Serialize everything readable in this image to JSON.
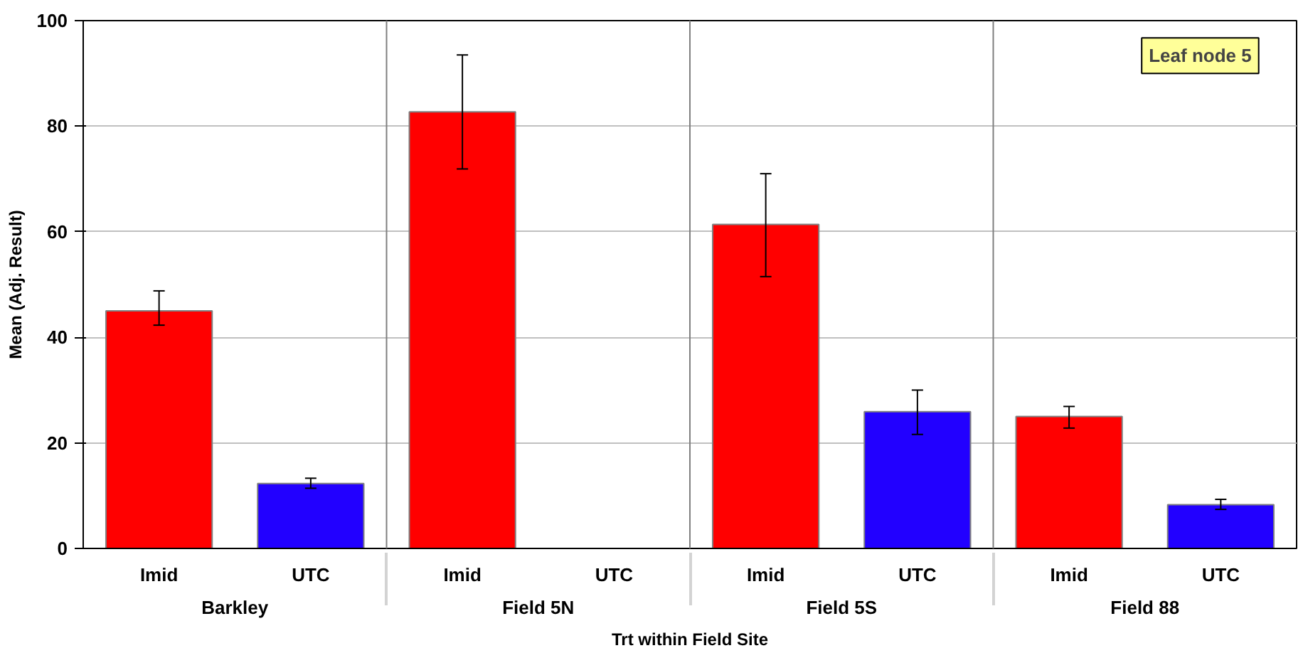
{
  "chart_data": {
    "type": "bar",
    "xlabel": "Trt within Field Site",
    "ylabel": "Mean (Adj. Result)",
    "categories": [
      "Barkley",
      "Field 5N",
      "Field 5S",
      "Field 88"
    ],
    "series": [
      {
        "name": "Imid",
        "color": "#ff0000",
        "values": [
          45,
          82.7,
          61.4,
          25
        ],
        "errors": [
          [
            42.3,
            48.8
          ],
          [
            71.9,
            93.5
          ],
          [
            51.5,
            71
          ],
          [
            22.8,
            26.9
          ]
        ]
      },
      {
        "name": "UTC",
        "color": "#2200ff",
        "values": [
          12.3,
          null,
          25.9,
          8.3
        ],
        "errors": [
          [
            11.4,
            13.3
          ],
          null,
          [
            21.6,
            30
          ],
          [
            7.4,
            9.3
          ]
        ]
      }
    ],
    "ylim": [
      0,
      100
    ],
    "yticks": [
      0,
      20,
      40,
      60,
      80,
      100
    ],
    "grid": true,
    "annotations": [
      "Leaf node 5"
    ]
  }
}
